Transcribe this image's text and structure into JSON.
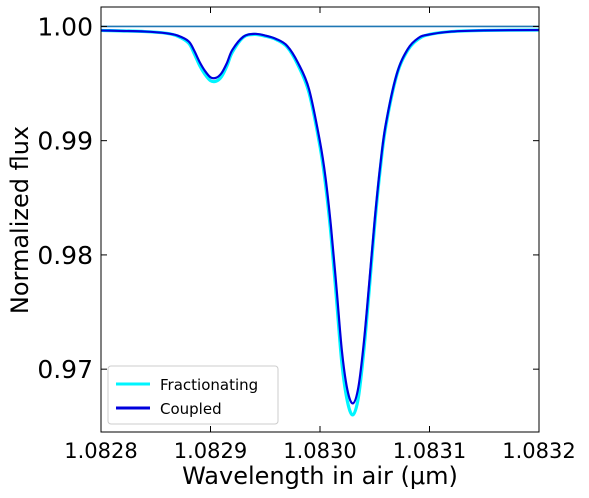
{
  "chart_data": {
    "type": "line",
    "xlabel": "Wavelength in air (μm)",
    "ylabel": "Normalized flux",
    "xlim": [
      1.0828,
      1.0832
    ],
    "ylim": [
      0.9645,
      1.0017
    ],
    "x_ticks": [
      "1.0828",
      "1.0829",
      "1.0830",
      "1.0831",
      "1.0832"
    ],
    "y_ticks": [
      "0.97",
      "0.98",
      "0.99",
      "1.00"
    ],
    "x_tick_values": [
      1.0828,
      1.0829,
      1.083,
      1.0831,
      1.0832
    ],
    "y_tick_values": [
      0.97,
      0.98,
      0.99,
      1.0
    ],
    "grid": false,
    "legend_position": "lower-left",
    "reference_line": {
      "y": 1.0,
      "color": "#1f77b4"
    },
    "series": [
      {
        "name": "Fractionating",
        "color": "#00f5ff",
        "x": [
          1.0828,
          1.08284,
          1.08286,
          1.08287,
          1.08288,
          1.082885,
          1.08289,
          1.082895,
          1.0829,
          1.082905,
          1.08291,
          1.082915,
          1.08292,
          1.08293,
          1.08294,
          1.08295,
          1.08296,
          1.08297,
          1.08298,
          1.08299,
          1.083,
          1.083005,
          1.08301,
          1.083015,
          1.08302,
          1.083025,
          1.08303,
          1.083035,
          1.08304,
          1.083045,
          1.08305,
          1.083055,
          1.08306,
          1.08307,
          1.08308,
          1.08309,
          1.0831,
          1.08312,
          1.08315,
          1.0832
        ],
        "y": [
          0.99965,
          0.99955,
          0.9994,
          0.99915,
          0.99855,
          0.99765,
          0.9966,
          0.9958,
          0.99525,
          0.9952,
          0.9956,
          0.99655,
          0.99775,
          0.99905,
          0.9993,
          0.99915,
          0.99885,
          0.9982,
          0.9966,
          0.9942,
          0.9895,
          0.9862,
          0.9818,
          0.9762,
          0.9705,
          0.9672,
          0.966,
          0.9675,
          0.9716,
          0.977,
          0.9827,
          0.9875,
          0.9912,
          0.9957,
          0.9979,
          0.9989,
          0.9993,
          0.99955,
          0.99965,
          0.99968
        ]
      },
      {
        "name": "Coupled",
        "color": "#0000dd",
        "x": [
          1.0828,
          1.08284,
          1.08286,
          1.08287,
          1.08288,
          1.082885,
          1.08289,
          1.082895,
          1.0829,
          1.082905,
          1.08291,
          1.082915,
          1.08292,
          1.08293,
          1.08294,
          1.08295,
          1.08296,
          1.08297,
          1.08298,
          1.08299,
          1.083,
          1.083005,
          1.08301,
          1.083015,
          1.08302,
          1.083025,
          1.08303,
          1.083035,
          1.08304,
          1.083045,
          1.08305,
          1.083055,
          1.08306,
          1.08307,
          1.08308,
          1.08309,
          1.0831,
          1.08312,
          1.08315,
          1.0832
        ],
        "y": [
          0.99965,
          0.99955,
          0.9994,
          0.9992,
          0.9987,
          0.9979,
          0.9969,
          0.9961,
          0.99555,
          0.9955,
          0.9959,
          0.9968,
          0.99795,
          0.9991,
          0.99935,
          0.9992,
          0.9989,
          0.9983,
          0.9968,
          0.9945,
          0.9899,
          0.9868,
          0.9825,
          0.9772,
          0.9716,
          0.9682,
          0.967,
          0.9684,
          0.9723,
          0.9776,
          0.9831,
          0.9878,
          0.9914,
          0.9958,
          0.998,
          0.999,
          0.9993,
          0.99955,
          0.99965,
          0.99968
        ]
      }
    ]
  }
}
